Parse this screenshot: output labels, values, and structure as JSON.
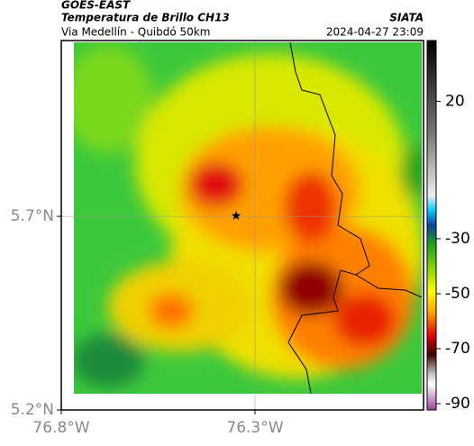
{
  "header": {
    "title": "GOES-EAST",
    "subtitle": "Temperatura de Brillo CH13",
    "region": "Via Medellín - Quibdó 50km",
    "source": "SIATA",
    "timestamp": "2024-04-27 23:09"
  },
  "map": {
    "xlim": [
      -76.8,
      -75.865
    ],
    "ylim": [
      5.2,
      6.154
    ],
    "xticks": [
      {
        "value": -76.8,
        "label": "76.8°W"
      },
      {
        "value": -76.3,
        "label": "76.3°W"
      }
    ],
    "yticks": [
      {
        "value": 5.2,
        "label": "5.2°N"
      },
      {
        "value": 5.7,
        "label": "5.7°N"
      }
    ],
    "grid": true
  },
  "colorbar": {
    "clim": [
      -92.3,
      42.1
    ],
    "ticks": [
      20,
      -30,
      -50,
      -70,
      -90
    ]
  }
}
